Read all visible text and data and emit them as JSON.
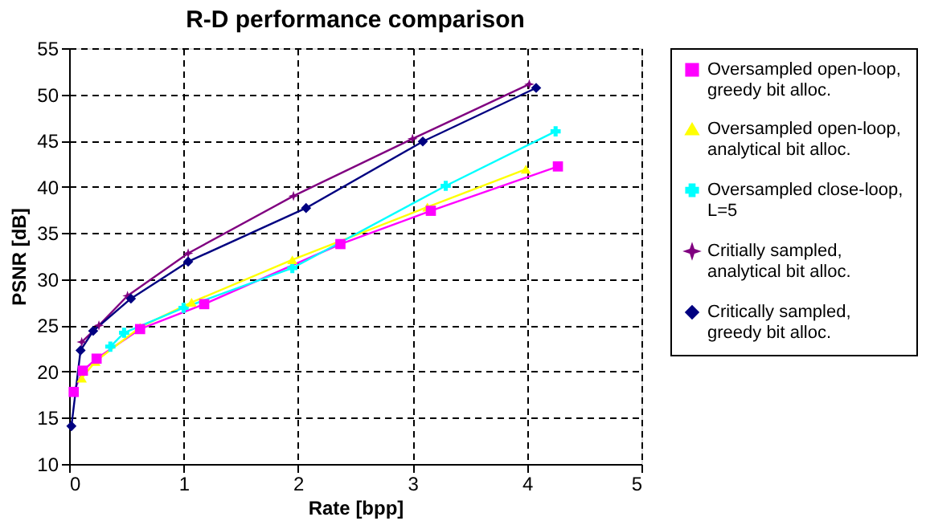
{
  "chart_data": {
    "type": "line",
    "title": "R-D performance comparison",
    "xlabel": "Rate [bpp]",
    "ylabel": "PSNR [dB]",
    "xlim": [
      0,
      5
    ],
    "xticks": [
      0,
      1,
      2,
      3,
      4,
      5
    ],
    "ylim": [
      10,
      55
    ],
    "yticks": [
      10,
      15,
      20,
      25,
      30,
      35,
      40,
      45,
      50,
      55
    ],
    "grid": true,
    "legend": "right",
    "line_style": "solid",
    "series": [
      {
        "name": "Oversampled open-loop, greedy bit alloc.",
        "color": "#ff00ff",
        "marker": "square",
        "x": [
          0.04,
          0.12,
          0.24,
          0.62,
          1.18,
          2.37,
          3.16,
          4.27
        ],
        "values": [
          17.8,
          20.1,
          21.4,
          24.6,
          27.3,
          33.8,
          37.4,
          42.2
        ]
      },
      {
        "name": "Oversampled open-loop, analytical bit alloc.",
        "color": "#ffff00",
        "marker": "triangle",
        "x": [
          0.11,
          0.23,
          0.62,
          1.07,
          1.95,
          3.13,
          3.99
        ],
        "values": [
          19.3,
          21.1,
          24.8,
          27.5,
          32.1,
          37.8,
          41.9
        ]
      },
      {
        "name": "Oversampled close-loop, L=5",
        "color": "#00ffff",
        "marker": "cross",
        "x": [
          0.36,
          0.48,
          1.0,
          1.95,
          3.29,
          4.25
        ],
        "values": [
          22.7,
          24.2,
          26.9,
          31.2,
          40.1,
          46.0
        ]
      },
      {
        "name": "Critially sampled, analytical bit alloc.",
        "color": "#800080",
        "marker": "star",
        "x": [
          0.11,
          0.26,
          0.51,
          1.04,
          1.96,
          3.0,
          4.02
        ],
        "values": [
          23.2,
          25.0,
          28.2,
          32.8,
          39.0,
          45.2,
          51.1
        ]
      },
      {
        "name": "Critically sampled, greedy bit alloc.",
        "color": "#000080",
        "marker": "diamond",
        "x": [
          0.02,
          0.1,
          0.21,
          0.54,
          1.04,
          2.07,
          3.09,
          4.08
        ],
        "values": [
          14.1,
          22.3,
          24.4,
          27.9,
          31.9,
          37.7,
          44.9,
          50.7
        ]
      }
    ]
  }
}
